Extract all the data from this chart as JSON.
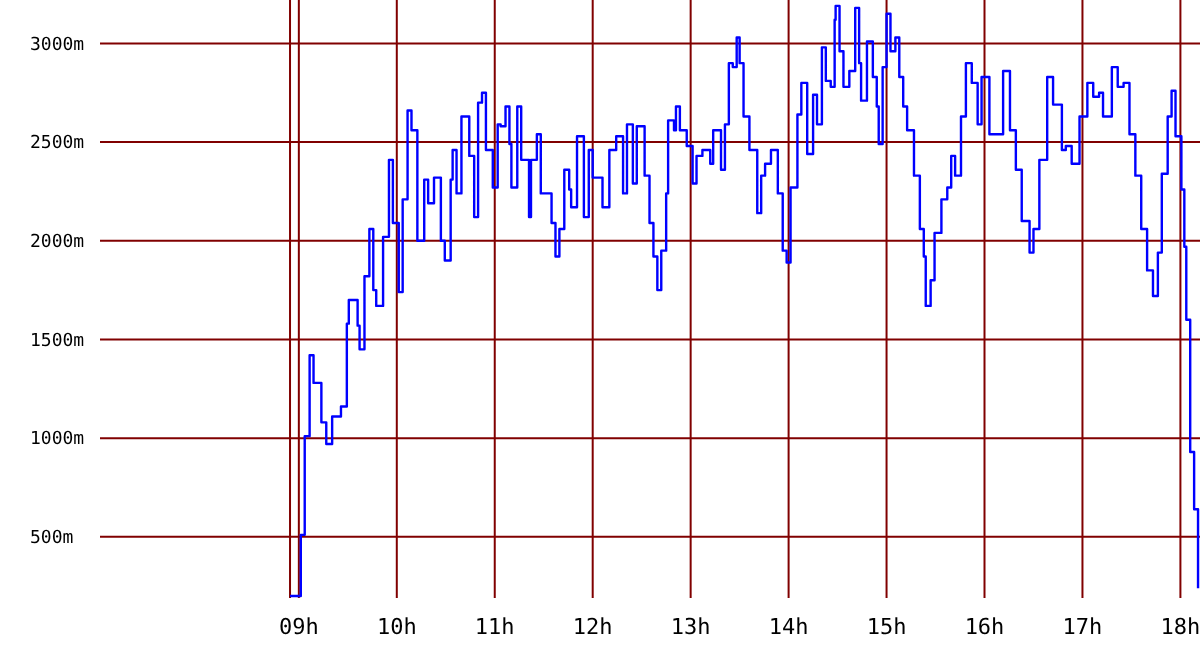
{
  "chart_data": {
    "type": "step",
    "x": [
      8.91,
      9.0,
      9.02,
      9.06,
      9.11,
      9.15,
      9.23,
      9.28,
      9.34,
      9.43,
      9.49,
      9.51,
      9.6,
      9.62,
      9.67,
      9.72,
      9.76,
      9.79,
      9.86,
      9.92,
      9.96,
      10.02,
      10.06,
      10.11,
      10.15,
      10.21,
      10.28,
      10.32,
      10.38,
      10.45,
      10.49,
      10.55,
      10.57,
      10.61,
      10.66,
      10.74,
      10.79,
      10.83,
      10.87,
      10.91,
      10.98,
      11.03,
      11.06,
      11.11,
      11.15,
      11.17,
      11.23,
      11.27,
      11.35,
      11.37,
      11.43,
      11.47,
      11.58,
      11.62,
      11.66,
      11.71,
      11.76,
      11.78,
      11.84,
      11.91,
      11.96,
      12.0,
      12.1,
      12.17,
      12.24,
      12.31,
      12.35,
      12.41,
      12.45,
      12.53,
      12.58,
      12.62,
      12.66,
      12.7,
      12.75,
      12.77,
      12.83,
      12.85,
      12.89,
      12.96,
      13.02,
      13.06,
      13.12,
      13.2,
      13.23,
      13.31,
      13.35,
      13.39,
      13.43,
      13.47,
      13.5,
      13.54,
      13.6,
      13.68,
      13.72,
      13.76,
      13.82,
      13.89,
      13.94,
      13.98,
      14.02,
      14.09,
      14.13,
      14.19,
      14.25,
      14.29,
      14.34,
      14.38,
      14.43,
      14.47,
      14.48,
      14.52,
      14.56,
      14.62,
      14.68,
      14.72,
      14.74,
      14.8,
      14.86,
      14.9,
      14.92,
      14.96,
      15.0,
      15.04,
      15.09,
      15.13,
      15.17,
      15.21,
      15.28,
      15.34,
      15.38,
      15.4,
      15.45,
      15.49,
      15.56,
      15.62,
      15.66,
      15.7,
      15.76,
      15.81,
      15.87,
      15.93,
      15.97,
      16.05,
      16.11,
      16.19,
      16.26,
      16.32,
      16.38,
      16.46,
      16.5,
      16.56,
      16.64,
      16.7,
      16.79,
      16.83,
      16.89,
      16.97,
      17.05,
      17.11,
      17.17,
      17.21,
      17.3,
      17.36,
      17.42,
      17.48,
      17.54,
      17.6,
      17.66,
      17.72,
      17.77,
      17.81,
      17.87,
      17.91,
      17.95,
      18.01,
      18.04,
      18.06,
      18.1,
      18.14,
      18.18
    ],
    "series": [
      {
        "color": "#0000ff",
        "values": [
          200,
          200,
          510,
          1010,
          1420,
          1280,
          1080,
          970,
          1110,
          1160,
          1580,
          1700,
          1570,
          1450,
          1820,
          2060,
          1750,
          1670,
          2020,
          2410,
          2090,
          1740,
          2210,
          2660,
          2560,
          2000,
          2310,
          2190,
          2320,
          2000,
          1900,
          2310,
          2460,
          2240,
          2630,
          2430,
          2120,
          2700,
          2750,
          2460,
          2270,
          2590,
          2580,
          2680,
          2490,
          2270,
          2680,
          2410,
          2120,
          2410,
          2540,
          2240,
          2090,
          1920,
          2060,
          2360,
          2260,
          2170,
          2530,
          2120,
          2460,
          2320,
          2170,
          2460,
          2530,
          2240,
          2590,
          2290,
          2580,
          2330,
          2090,
          1920,
          1750,
          1950,
          2240,
          2610,
          2560,
          2680,
          2560,
          2480,
          2290,
          2430,
          2460,
          2390,
          2560,
          2360,
          2590,
          2900,
          2880,
          3030,
          2900,
          2630,
          2460,
          2140,
          2330,
          2390,
          2460,
          2240,
          1950,
          1890,
          2270,
          2640,
          2800,
          2440,
          2740,
          2590,
          2980,
          2810,
          2780,
          3120,
          3190,
          2960,
          2780,
          2860,
          3180,
          2900,
          2710,
          3010,
          2830,
          2680,
          2490,
          2880,
          3150,
          2960,
          3030,
          2830,
          2680,
          2560,
          2330,
          2060,
          1920,
          1670,
          1800,
          2040,
          2210,
          2270,
          2430,
          2330,
          2630,
          2900,
          2800,
          2590,
          2830,
          2540,
          2540,
          2860,
          2560,
          2360,
          2100,
          1940,
          2060,
          2410,
          2830,
          2690,
          2460,
          2480,
          2390,
          2630,
          2800,
          2730,
          2750,
          2630,
          2880,
          2780,
          2800,
          2540,
          2330,
          2060,
          1850,
          1720,
          1940,
          2340,
          2630,
          2760,
          2530,
          2260,
          1970,
          1600,
          930,
          640,
          240
        ]
      }
    ],
    "xlim": [
      6.97,
      18.2
    ],
    "ylim": [
      190,
      3220
    ],
    "xticks": [
      {
        "value": 8.91,
        "label": null
      },
      {
        "value": 9,
        "label": "09h"
      },
      {
        "value": 10,
        "label": "10h"
      },
      {
        "value": 11,
        "label": "11h"
      },
      {
        "value": 12,
        "label": "12h"
      },
      {
        "value": 13,
        "label": "13h"
      },
      {
        "value": 14,
        "label": "14h"
      },
      {
        "value": 15,
        "label": "15h"
      },
      {
        "value": 16,
        "label": "16h"
      },
      {
        "value": 17,
        "label": "17h"
      },
      {
        "value": 18,
        "label": "18h"
      }
    ],
    "yticks": [
      {
        "value": 500,
        "label": "500m"
      },
      {
        "value": 1000,
        "label": "1000m"
      },
      {
        "value": 1500,
        "label": "1500m"
      },
      {
        "value": 2000,
        "label": "2000m"
      },
      {
        "value": 2500,
        "label": "2500m"
      },
      {
        "value": 3000,
        "label": "3000m"
      }
    ],
    "grid": true
  }
}
